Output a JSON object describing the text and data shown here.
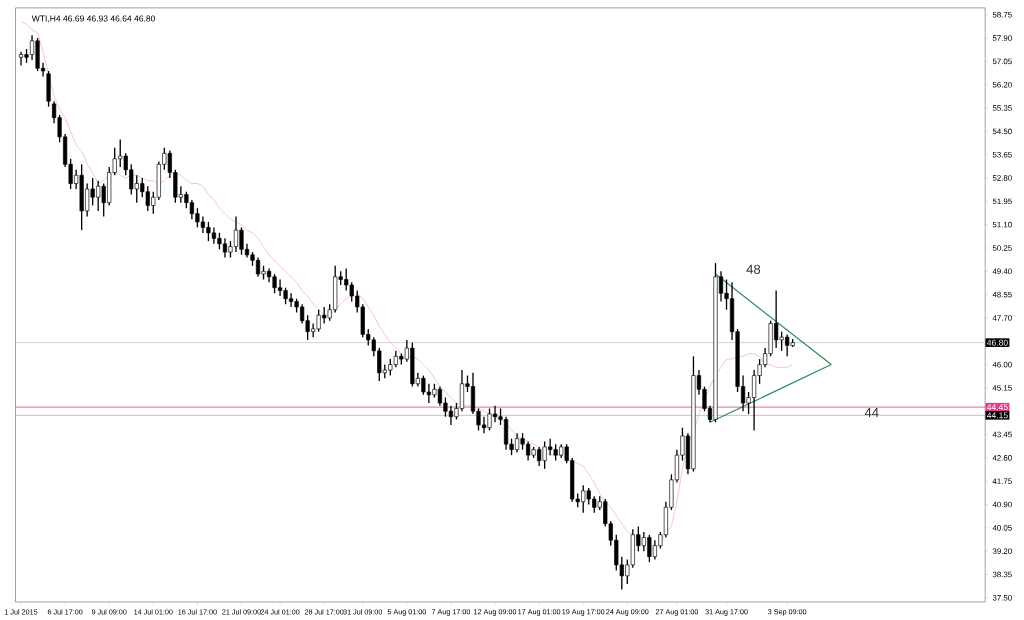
{
  "chart_data": {
    "type": "candlestick",
    "title": "WTI,H4  46.69 46.93 46.64 46.80",
    "categories": [
      "1 Jul 2015",
      null,
      null,
      null,
      null,
      null,
      null,
      null,
      "6 Jul 17:00",
      null,
      null,
      null,
      null,
      null,
      null,
      null,
      "9 Jul 09:00",
      null,
      null,
      null,
      null,
      null,
      null,
      null,
      "14 Jul 01:00",
      null,
      null,
      null,
      null,
      null,
      null,
      null,
      "16 Jul 17:00",
      null,
      null,
      null,
      null,
      null,
      null,
      null,
      "21 Jul 09:00",
      null,
      null,
      null,
      null,
      null,
      null,
      "24 Jul 01:00",
      null,
      null,
      null,
      null,
      null,
      null,
      null,
      "28 Jul 17:00",
      null,
      null,
      null,
      null,
      null,
      null,
      "31 Jul 09:00",
      null,
      null,
      null,
      null,
      null,
      null,
      null,
      "5 Aug 01:00",
      null,
      null,
      null,
      null,
      null,
      null,
      null,
      "7 Aug 17:00",
      null,
      null,
      null,
      null,
      null,
      null,
      null,
      "12 Aug 09:00",
      null,
      null,
      null,
      null,
      null,
      null,
      null,
      "17 Aug 01:00",
      null,
      null,
      null,
      null,
      null,
      null,
      null,
      "19 Aug 17:00",
      null,
      null,
      null,
      null,
      null,
      null,
      null,
      "24 Aug 09:00",
      null,
      null,
      null,
      null,
      null,
      null,
      null,
      null,
      "27 Aug 01:00",
      null,
      null,
      null,
      null,
      null,
      null,
      null,
      null,
      "31 Aug 17:00",
      null,
      null,
      null,
      null,
      null,
      null,
      null,
      null,
      null,
      null,
      "3 Sep 09:00",
      null,
      null,
      null,
      null,
      null,
      null,
      null,
      null
    ],
    "ohlc": [
      [
        57.2,
        57.4,
        56.9,
        57.3
      ],
      [
        57.3,
        57.5,
        57.0,
        57.2
      ],
      [
        57.3,
        58.0,
        57.1,
        57.8
      ],
      [
        57.8,
        57.9,
        56.7,
        56.8
      ],
      [
        56.8,
        57.0,
        56.5,
        56.7
      ],
      [
        56.6,
        56.7,
        55.4,
        55.6
      ],
      [
        55.5,
        55.6,
        54.8,
        55.0
      ],
      [
        55.0,
        55.1,
        54.1,
        54.3
      ],
      [
        54.3,
        54.4,
        53.2,
        53.3
      ],
      [
        53.3,
        53.5,
        52.4,
        52.6
      ],
      [
        52.6,
        53.1,
        52.4,
        52.9
      ],
      [
        52.9,
        53.3,
        50.9,
        51.6
      ],
      [
        51.6,
        52.6,
        51.4,
        52.4
      ],
      [
        52.4,
        52.8,
        51.8,
        52.1
      ],
      [
        52.1,
        52.7,
        51.6,
        52.5
      ],
      [
        52.5,
        52.6,
        51.4,
        51.9
      ],
      [
        51.9,
        53.2,
        51.8,
        53.0
      ],
      [
        53.0,
        53.9,
        52.9,
        53.5
      ],
      [
        53.5,
        54.2,
        53.2,
        53.6
      ],
      [
        53.6,
        53.7,
        52.9,
        53.1
      ],
      [
        53.1,
        53.3,
        52.2,
        52.4
      ],
      [
        52.4,
        52.9,
        51.9,
        52.6
      ],
      [
        52.6,
        52.8,
        52.1,
        52.3
      ],
      [
        52.3,
        52.5,
        51.6,
        51.8
      ],
      [
        51.8,
        52.3,
        51.5,
        52.1
      ],
      [
        52.1,
        53.4,
        52.0,
        53.3
      ],
      [
        53.3,
        53.9,
        53.1,
        53.7
      ],
      [
        53.7,
        53.8,
        52.8,
        53.0
      ],
      [
        53.0,
        53.1,
        51.9,
        52.1
      ],
      [
        52.1,
        52.5,
        51.9,
        52.2
      ],
      [
        52.2,
        52.3,
        51.7,
        51.9
      ],
      [
        51.9,
        52.0,
        51.3,
        51.5
      ],
      [
        51.5,
        51.7,
        51.0,
        51.2
      ],
      [
        51.2,
        51.4,
        50.8,
        51.0
      ],
      [
        51.0,
        51.2,
        50.5,
        50.8
      ],
      [
        50.8,
        51.0,
        50.4,
        50.6
      ],
      [
        50.6,
        50.8,
        50.2,
        50.4
      ],
      [
        50.4,
        50.6,
        49.9,
        50.1
      ],
      [
        50.1,
        50.5,
        49.9,
        50.3
      ],
      [
        50.3,
        51.4,
        50.1,
        50.9
      ],
      [
        50.9,
        51.0,
        50.0,
        50.2
      ],
      [
        50.2,
        50.4,
        49.9,
        50.0
      ],
      [
        50.0,
        50.1,
        49.6,
        49.8
      ],
      [
        49.8,
        49.9,
        49.2,
        49.3
      ],
      [
        49.3,
        49.6,
        49.1,
        49.4
      ],
      [
        49.4,
        49.5,
        49.0,
        49.2
      ],
      [
        49.2,
        49.3,
        48.6,
        48.8
      ],
      [
        48.8,
        49.1,
        48.5,
        48.7
      ],
      [
        48.7,
        48.8,
        48.2,
        48.4
      ],
      [
        48.4,
        48.6,
        48.1,
        48.3
      ],
      [
        48.3,
        48.4,
        47.9,
        48.1
      ],
      [
        48.1,
        48.2,
        47.5,
        47.6
      ],
      [
        47.6,
        47.8,
        46.9,
        47.2
      ],
      [
        47.2,
        47.5,
        47.0,
        47.3
      ],
      [
        47.3,
        48.0,
        47.2,
        47.8
      ],
      [
        47.8,
        48.1,
        47.5,
        47.7
      ],
      [
        47.7,
        48.2,
        47.6,
        48.0
      ],
      [
        48.0,
        49.6,
        47.9,
        49.2
      ],
      [
        49.2,
        49.4,
        48.9,
        49.1
      ],
      [
        49.1,
        49.5,
        48.7,
        48.9
      ],
      [
        48.9,
        49.0,
        48.3,
        48.5
      ],
      [
        48.5,
        48.7,
        47.9,
        48.1
      ],
      [
        48.1,
        48.2,
        47.0,
        47.1
      ],
      [
        47.1,
        47.3,
        46.7,
        46.9
      ],
      [
        46.9,
        47.0,
        46.3,
        46.5
      ],
      [
        46.5,
        46.6,
        45.4,
        45.7
      ],
      [
        45.7,
        46.0,
        45.5,
        45.8
      ],
      [
        45.8,
        46.2,
        45.6,
        46.0
      ],
      [
        46.0,
        46.5,
        45.9,
        46.3
      ],
      [
        46.3,
        46.4,
        46.0,
        46.2
      ],
      [
        46.2,
        46.9,
        46.1,
        46.6
      ],
      [
        46.6,
        46.8,
        45.2,
        45.3
      ],
      [
        45.3,
        45.7,
        45.2,
        45.5
      ],
      [
        45.5,
        45.6,
        44.9,
        45.0
      ],
      [
        45.0,
        45.3,
        44.6,
        44.9
      ],
      [
        44.9,
        45.3,
        44.8,
        45.1
      ],
      [
        45.1,
        45.2,
        44.5,
        44.6
      ],
      [
        44.6,
        44.8,
        44.1,
        44.3
      ],
      [
        44.3,
        44.5,
        43.8,
        44.1
      ],
      [
        44.1,
        44.6,
        44.0,
        44.4
      ],
      [
        44.4,
        45.8,
        44.3,
        45.3
      ],
      [
        45.3,
        45.6,
        45.0,
        45.2
      ],
      [
        45.2,
        45.7,
        44.2,
        44.3
      ],
      [
        44.3,
        44.4,
        43.6,
        43.8
      ],
      [
        43.8,
        44.1,
        43.5,
        43.7
      ],
      [
        43.7,
        44.4,
        43.6,
        44.2
      ],
      [
        44.2,
        44.5,
        43.9,
        44.1
      ],
      [
        44.1,
        44.4,
        43.8,
        44.0
      ],
      [
        44.0,
        44.1,
        42.9,
        43.1
      ],
      [
        43.1,
        43.3,
        42.7,
        42.9
      ],
      [
        42.9,
        43.5,
        42.8,
        43.3
      ],
      [
        43.3,
        43.5,
        42.9,
        43.1
      ],
      [
        43.1,
        43.2,
        42.5,
        42.7
      ],
      [
        42.7,
        43.0,
        42.6,
        42.9
      ],
      [
        42.9,
        43.0,
        42.3,
        42.5
      ],
      [
        42.5,
        43.2,
        42.2,
        43.0
      ],
      [
        43.0,
        43.3,
        42.7,
        42.9
      ],
      [
        42.9,
        43.1,
        42.5,
        42.7
      ],
      [
        42.7,
        43.1,
        42.6,
        43.0
      ],
      [
        43.0,
        43.1,
        42.4,
        42.5
      ],
      [
        42.5,
        42.6,
        41.0,
        41.1
      ],
      [
        41.1,
        41.3,
        40.8,
        41.0
      ],
      [
        41.0,
        41.6,
        40.6,
        41.4
      ],
      [
        41.4,
        41.5,
        40.9,
        41.1
      ],
      [
        41.1,
        41.2,
        40.6,
        40.8
      ],
      [
        40.8,
        41.2,
        40.7,
        41.0
      ],
      [
        41.0,
        41.1,
        40.1,
        40.2
      ],
      [
        40.2,
        40.3,
        39.4,
        39.6
      ],
      [
        39.6,
        39.8,
        38.5,
        38.7
      ],
      [
        38.7,
        39.0,
        37.8,
        38.3
      ],
      [
        38.3,
        38.9,
        38.0,
        38.7
      ],
      [
        38.7,
        40.0,
        38.6,
        39.8
      ],
      [
        39.8,
        40.1,
        39.2,
        39.4
      ],
      [
        39.4,
        39.9,
        39.2,
        39.7
      ],
      [
        39.7,
        39.8,
        38.8,
        39.0
      ],
      [
        39.0,
        39.6,
        38.9,
        39.4
      ],
      [
        39.4,
        39.9,
        39.3,
        39.8
      ],
      [
        39.8,
        41.0,
        39.7,
        40.8
      ],
      [
        40.8,
        42.0,
        40.7,
        41.8
      ],
      [
        41.8,
        42.9,
        41.7,
        42.7
      ],
      [
        42.7,
        43.7,
        42.5,
        43.4
      ],
      [
        43.4,
        43.5,
        42.0,
        42.2
      ],
      [
        42.2,
        46.3,
        42.1,
        45.6
      ],
      [
        45.6,
        45.8,
        44.9,
        45.1
      ],
      [
        45.1,
        45.2,
        44.3,
        44.4
      ],
      [
        44.4,
        44.5,
        43.9,
        44.0
      ],
      [
        44.0,
        49.7,
        43.9,
        49.2
      ],
      [
        49.2,
        49.4,
        48.3,
        48.6
      ],
      [
        48.6,
        49.1,
        48.0,
        48.4
      ],
      [
        48.4,
        49.0,
        46.9,
        47.2
      ],
      [
        47.2,
        47.3,
        45.0,
        45.2
      ],
      [
        45.2,
        45.6,
        44.3,
        44.6
      ],
      [
        44.6,
        45.0,
        44.2,
        44.8
      ],
      [
        44.8,
        45.8,
        43.6,
        45.6
      ],
      [
        45.6,
        46.2,
        45.3,
        46.0
      ],
      [
        46.0,
        46.6,
        45.9,
        46.4
      ],
      [
        46.4,
        47.6,
        46.3,
        47.5
      ],
      [
        47.5,
        48.7,
        46.6,
        46.9
      ],
      [
        46.9,
        47.2,
        46.5,
        47.0
      ],
      [
        47.0,
        47.1,
        46.3,
        46.7
      ],
      [
        46.69,
        46.93,
        46.64,
        46.8
      ],
      null,
      null,
      null,
      null,
      null,
      null,
      null
    ],
    "series": [
      {
        "type": "line",
        "color": "#f5b5c5",
        "values": [
          58.5,
          58.4,
          58.2,
          58.1,
          57.4,
          null,
          55.8,
          55.3,
          55.0,
          54.5,
          54.0,
          53.8,
          53.3,
          53.0,
          52.6,
          52.7,
          52.9,
          53.0,
          52.9,
          52.8,
          52.9,
          52.9,
          52.8,
          52.7,
          52.7,
          52.6,
          52.7,
          52.9,
          53.0,
          52.9,
          52.7,
          52.6,
          52.6,
          52.5,
          52.2,
          52.0,
          51.7,
          51.5,
          51.3,
          51.2,
          51.1,
          50.9,
          50.8,
          50.6,
          50.3,
          50.0,
          49.8,
          49.6,
          49.4,
          49.2,
          49.0,
          48.7,
          48.5,
          48.2,
          48.0,
          47.8,
          47.8,
          48.0,
          48.2,
          48.4,
          48.5,
          48.6,
          48.4,
          48.1,
          47.8,
          47.4,
          47.1,
          46.8,
          46.6,
          46.4,
          46.3,
          46.3,
          46.2,
          46.0,
          45.8,
          45.5,
          45.2,
          45.0,
          44.8,
          44.6,
          44.5,
          44.5,
          44.5,
          44.4,
          44.3,
          44.2,
          44.1,
          44.0,
          43.9,
          43.6,
          43.4,
          43.3,
          43.2,
          43.1,
          43.0,
          42.8,
          42.7,
          42.7,
          42.7,
          42.6,
          42.5,
          42.4,
          42.3,
          42.0,
          41.7,
          41.3,
          41.0,
          40.8,
          40.5,
          40.2,
          39.9,
          39.8,
          39.6,
          39.4,
          39.2,
          39.3,
          39.5,
          39.9,
          40.1,
          41.0,
          42.2,
          43.1,
          43.5,
          44.2,
          null,
          45.2,
          45.6,
          45.9,
          46.2,
          46.2,
          46.3,
          46.3,
          46.4,
          46.4,
          46.3,
          46.0,
          46.0,
          45.9,
          45.9,
          45.9,
          46.0,
          null,
          null,
          null,
          null,
          null,
          null,
          null
        ]
      },
      {
        "type": "line",
        "color": "#2e8b57",
        "values": [
          null,
          null,
          null,
          null,
          null,
          null,
          null,
          null,
          null,
          null,
          null,
          null,
          null,
          null,
          null,
          null,
          null,
          null,
          null,
          null,
          null,
          null,
          null,
          null,
          null,
          null,
          null,
          null,
          null,
          null,
          null,
          null,
          null,
          null,
          null,
          null,
          null,
          null,
          null,
          null,
          null,
          null,
          null,
          null,
          null,
          null,
          null,
          null,
          null,
          null,
          null,
          null,
          null,
          null,
          null,
          null,
          null,
          null,
          null,
          null,
          null,
          null,
          null,
          null,
          null,
          null,
          null,
          null,
          null,
          null,
          null,
          null,
          null,
          null,
          null,
          null,
          null,
          null,
          null,
          null,
          null,
          null,
          null,
          null,
          null,
          null,
          null,
          null,
          null,
          null,
          null,
          null,
          null,
          null,
          null,
          null,
          null,
          null,
          null,
          null,
          null,
          null,
          null,
          null,
          null,
          null,
          null,
          null,
          null,
          null,
          null,
          null,
          null,
          null,
          null,
          null,
          null,
          null,
          null,
          null,
          null,
          null,
          null,
          null,
          null,
          null,
          49.3,
          null,
          null,
          null,
          null,
          null,
          null,
          null,
          null,
          null,
          null,
          null,
          null,
          null,
          null,
          null,
          null,
          null,
          null,
          null,
          null,
          46.0
        ]
      },
      {
        "type": "line",
        "color": "#2e8b57",
        "values": [
          null,
          null,
          null,
          null,
          null,
          null,
          null,
          null,
          null,
          null,
          null,
          null,
          null,
          null,
          null,
          null,
          null,
          null,
          null,
          null,
          null,
          null,
          null,
          null,
          null,
          null,
          null,
          null,
          null,
          null,
          null,
          null,
          null,
          null,
          null,
          null,
          null,
          null,
          null,
          null,
          null,
          null,
          null,
          null,
          null,
          null,
          null,
          null,
          null,
          null,
          null,
          null,
          null,
          null,
          null,
          null,
          null,
          null,
          null,
          null,
          null,
          null,
          null,
          null,
          null,
          null,
          null,
          null,
          null,
          null,
          null,
          null,
          null,
          null,
          null,
          null,
          null,
          null,
          null,
          null,
          null,
          null,
          null,
          null,
          null,
          null,
          null,
          null,
          null,
          null,
          null,
          null,
          null,
          null,
          null,
          null,
          null,
          null,
          null,
          null,
          null,
          null,
          null,
          null,
          null,
          null,
          null,
          null,
          null,
          null,
          null,
          null,
          null,
          null,
          null,
          null,
          null,
          null,
          null,
          null,
          null,
          null,
          null,
          null,
          null,
          43.9,
          null,
          null,
          null,
          null,
          null,
          null,
          null,
          null,
          null,
          null,
          null,
          null,
          null,
          null,
          null,
          null,
          null,
          null,
          null,
          null,
          null,
          46.0
        ]
      }
    ],
    "ref_lines": [
      {
        "axis": "y",
        "value": 46.8,
        "label": "46.80",
        "color": "#c8c8c8"
      },
      {
        "axis": "y",
        "value": 44.45,
        "label": "44.45",
        "color": "#e0408a"
      },
      {
        "axis": "y",
        "value": 44.15,
        "label": "44.15",
        "color": "#ff8cc6"
      }
    ],
    "annotations": [
      "48",
      {
        "text": "44",
        "y": 44.25
      }
    ],
    "ylim": [
      37.35,
      59.0
    ],
    "yticks": [
      58.75,
      {
        "value": 57.9,
        "label": "57.90"
      },
      57.05,
      {
        "value": 56.2,
        "label": "56.20"
      },
      55.35,
      {
        "value": 54.5,
        "label": "54.50"
      },
      53.65,
      {
        "value": 52.8,
        "label": "52.80"
      },
      51.95,
      {
        "value": 51.1,
        "label": "51.10"
      },
      50.25,
      {
        "value": 49.4,
        "label": "49.40"
      },
      48.55,
      {
        "value": 47.7,
        "label": "47.70"
      },
      {
        "value": 46.0,
        "label": "46.00"
      },
      45.15,
      43.45,
      {
        "value": 42.6,
        "label": "42.60"
      },
      41.75,
      {
        "value": 40.9,
        "label": "40.90"
      },
      40.05,
      {
        "value": 39.2,
        "label": "39.20"
      },
      38.35,
      {
        "value": 37.5,
        "label": "37.50"
      }
    ]
  }
}
